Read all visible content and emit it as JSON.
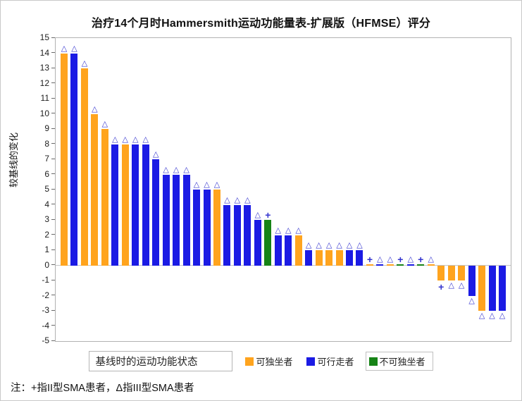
{
  "title": "治疗14个月时Hammersmith运动功能量表-扩展版（HFMSE）评分",
  "note": "注：+指II型SMA患者，Δ指III型SMA患者",
  "y_axis": {
    "label": "较基线的变化",
    "min": -5,
    "max": 15,
    "step": 1
  },
  "legend": {
    "title": "基线时的运动功能状态",
    "items": [
      {
        "key": "sitter",
        "label": "可独坐者",
        "color": "#FFA41E"
      },
      {
        "key": "walker",
        "label": "可行走者",
        "color": "#1B1BE4"
      },
      {
        "key": "nonsitter",
        "label": "不可独坐者",
        "color": "#168316"
      }
    ]
  },
  "marker_glyphs": {
    "tri": "△",
    "plus": "+"
  },
  "marker_color": "#3535CF",
  "marker_legend": {
    "plus_meaning": "II型SMA患者",
    "tri_meaning": "III型SMA患者"
  },
  "chart_data": {
    "type": "bar",
    "title": "治疗14个月时Hammersmith运动功能量表-扩展版（HFMSE）评分",
    "xlabel": "",
    "ylabel": "较基线的变化",
    "ylim": [
      -5,
      15
    ],
    "grid": false,
    "legend_position": "bottom",
    "group_colors": {
      "sitter": "#FFA41E",
      "walker": "#1B1BE4",
      "nonsitter": "#168316"
    },
    "bars": [
      {
        "v": 14,
        "c": "sitter",
        "m": "tri"
      },
      {
        "v": 14,
        "c": "walker",
        "m": "tri"
      },
      {
        "v": 13,
        "c": "sitter",
        "m": "tri"
      },
      {
        "v": 10,
        "c": "sitter",
        "m": "tri"
      },
      {
        "v": 9,
        "c": "sitter",
        "m": "tri"
      },
      {
        "v": 8,
        "c": "walker",
        "m": "tri"
      },
      {
        "v": 8,
        "c": "sitter",
        "m": "tri"
      },
      {
        "v": 8,
        "c": "walker",
        "m": "tri"
      },
      {
        "v": 8,
        "c": "walker",
        "m": "tri"
      },
      {
        "v": 7,
        "c": "walker",
        "m": "tri"
      },
      {
        "v": 6,
        "c": "walker",
        "m": "tri"
      },
      {
        "v": 6,
        "c": "walker",
        "m": "tri"
      },
      {
        "v": 6,
        "c": "walker",
        "m": "tri"
      },
      {
        "v": 5,
        "c": "walker",
        "m": "tri"
      },
      {
        "v": 5,
        "c": "walker",
        "m": "tri"
      },
      {
        "v": 5,
        "c": "sitter",
        "m": "tri"
      },
      {
        "v": 4,
        "c": "walker",
        "m": "tri"
      },
      {
        "v": 4,
        "c": "walker",
        "m": "tri"
      },
      {
        "v": 4,
        "c": "walker",
        "m": "tri"
      },
      {
        "v": 3,
        "c": "walker",
        "m": "tri"
      },
      {
        "v": 3,
        "c": "nonsitter",
        "m": "plus"
      },
      {
        "v": 2,
        "c": "walker",
        "m": "tri"
      },
      {
        "v": 2,
        "c": "walker",
        "m": "tri"
      },
      {
        "v": 2,
        "c": "sitter",
        "m": "tri"
      },
      {
        "v": 1,
        "c": "walker",
        "m": "tri"
      },
      {
        "v": 1,
        "c": "sitter",
        "m": "tri"
      },
      {
        "v": 1,
        "c": "sitter",
        "m": "tri"
      },
      {
        "v": 1,
        "c": "sitter",
        "m": "tri"
      },
      {
        "v": 1,
        "c": "walker",
        "m": "tri"
      },
      {
        "v": 1,
        "c": "walker",
        "m": "tri"
      },
      {
        "v": 0,
        "c": "sitter",
        "m": "plus"
      },
      {
        "v": 0,
        "c": "walker",
        "m": "tri"
      },
      {
        "v": 0,
        "c": "sitter",
        "m": "tri"
      },
      {
        "v": 0,
        "c": "nonsitter",
        "m": "plus"
      },
      {
        "v": 0,
        "c": "walker",
        "m": "tri"
      },
      {
        "v": 0,
        "c": "nonsitter",
        "m": "plus"
      },
      {
        "v": 0,
        "c": "sitter",
        "m": "tri"
      },
      {
        "v": -1,
        "c": "sitter",
        "m": "plus"
      },
      {
        "v": -1,
        "c": "sitter",
        "m": "tri"
      },
      {
        "v": -1,
        "c": "sitter",
        "m": "tri"
      },
      {
        "v": -2,
        "c": "walker",
        "m": "tri"
      },
      {
        "v": -3,
        "c": "sitter",
        "m": "tri"
      },
      {
        "v": -3,
        "c": "walker",
        "m": "tri"
      },
      {
        "v": -3,
        "c": "walker",
        "m": "tri"
      }
    ]
  }
}
